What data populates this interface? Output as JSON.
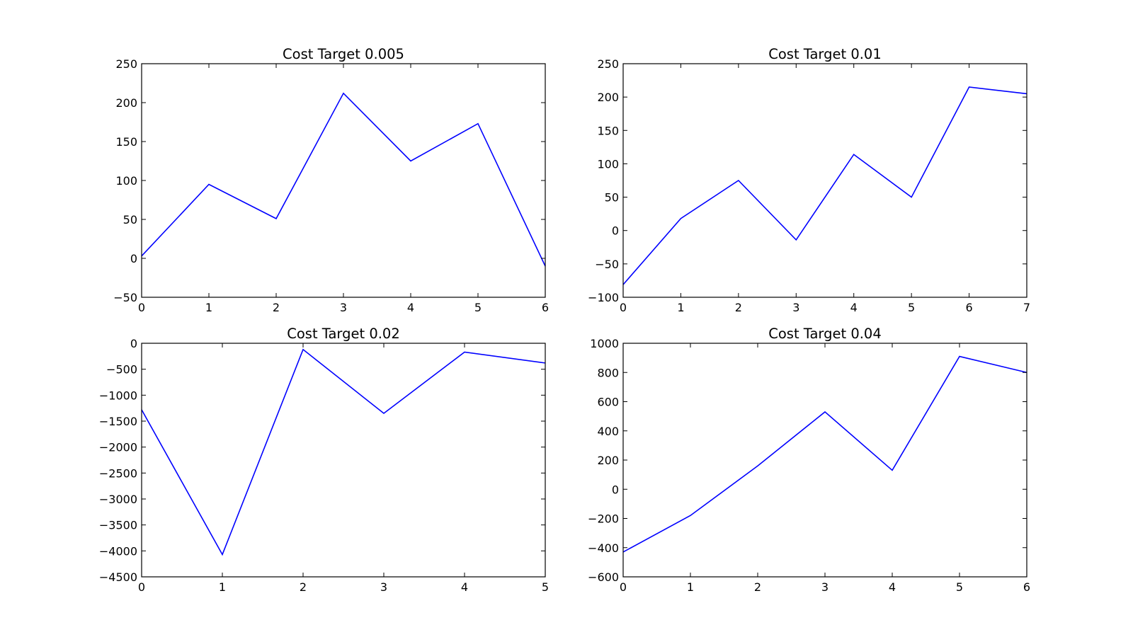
{
  "chart_data": [
    {
      "type": "line",
      "title": "Cost Target 0.005",
      "xlabel": "",
      "ylabel": "",
      "xlim": [
        0,
        6
      ],
      "ylim": [
        -50,
        250
      ],
      "xticks": [
        0,
        1,
        2,
        3,
        4,
        5,
        6
      ],
      "yticks": [
        -50,
        0,
        50,
        100,
        150,
        200,
        250
      ],
      "grid": false,
      "series": [
        {
          "color": "#0000ff",
          "x": [
            0,
            1,
            2,
            3,
            4,
            5,
            6
          ],
          "y": [
            3,
            95,
            51,
            212,
            125,
            173,
            -10
          ]
        }
      ]
    },
    {
      "type": "line",
      "title": "Cost Target 0.01",
      "xlabel": "",
      "ylabel": "",
      "xlim": [
        0,
        7
      ],
      "ylim": [
        -100,
        250
      ],
      "xticks": [
        0,
        1,
        2,
        3,
        4,
        5,
        6,
        7
      ],
      "yticks": [
        -100,
        -50,
        0,
        50,
        100,
        150,
        200,
        250
      ],
      "grid": false,
      "series": [
        {
          "color": "#0000ff",
          "x": [
            0,
            1,
            2,
            3,
            4,
            5,
            6,
            7
          ],
          "y": [
            -81,
            18,
            75,
            -14,
            114,
            50,
            215,
            205
          ]
        }
      ]
    },
    {
      "type": "line",
      "title": "Cost Target 0.02",
      "xlabel": "",
      "ylabel": "",
      "xlim": [
        0,
        5
      ],
      "ylim": [
        -4500,
        0
      ],
      "xticks": [
        0,
        1,
        2,
        3,
        4,
        5
      ],
      "yticks": [
        -4500,
        -4000,
        -3500,
        -3000,
        -2500,
        -2000,
        -1500,
        -1000,
        -500,
        0
      ],
      "grid": false,
      "series": [
        {
          "color": "#0000ff",
          "x": [
            0,
            1,
            2,
            3,
            4,
            5
          ],
          "y": [
            -1280,
            -4070,
            -120,
            -1350,
            -170,
            -380
          ]
        }
      ]
    },
    {
      "type": "line",
      "title": "Cost Target 0.04",
      "xlabel": "",
      "ylabel": "",
      "xlim": [
        0,
        6
      ],
      "ylim": [
        -600,
        1000
      ],
      "xticks": [
        0,
        1,
        2,
        3,
        4,
        5,
        6
      ],
      "yticks": [
        -600,
        -400,
        -200,
        0,
        200,
        400,
        600,
        800,
        1000
      ],
      "grid": false,
      "series": [
        {
          "color": "#0000ff",
          "x": [
            0,
            1,
            2,
            3,
            4,
            5,
            6
          ],
          "y": [
            -430,
            -180,
            160,
            530,
            130,
            910,
            800
          ]
        }
      ]
    }
  ]
}
